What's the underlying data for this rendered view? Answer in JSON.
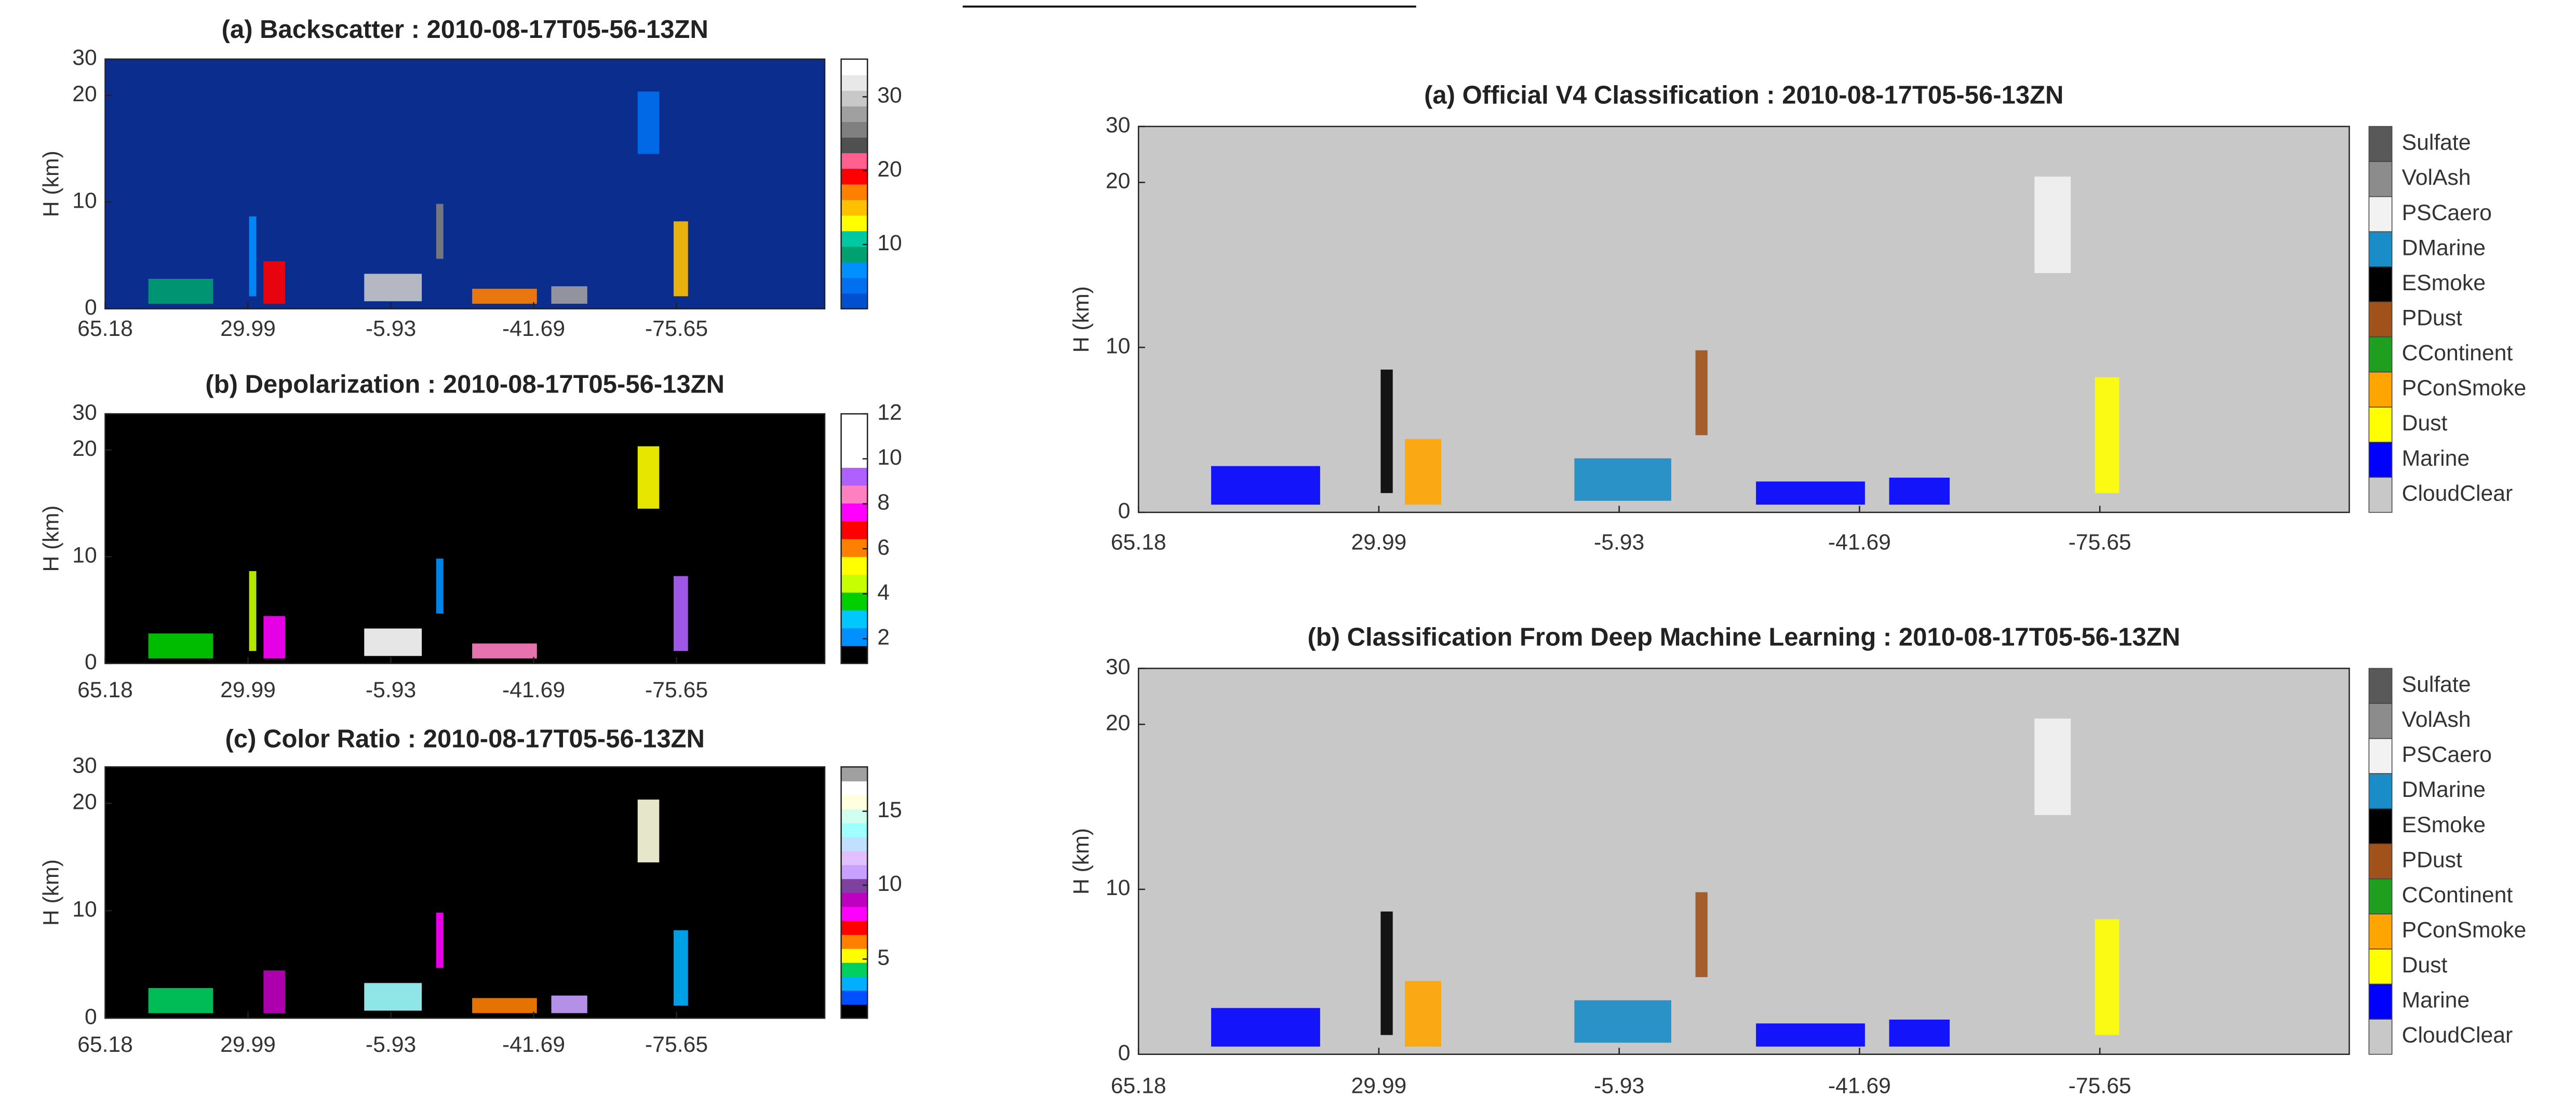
{
  "chart_data": [
    {
      "type": "heatmap",
      "title": "(a) Backscatter : 2010-08-17T05-56-13ZN",
      "ylabel": "H (km)",
      "xticks": [
        65.18,
        29.99,
        -5.93,
        -41.69,
        -75.65
      ],
      "ylim": [
        0,
        30
      ],
      "yticks": [
        0,
        10,
        20,
        30
      ],
      "background": "#0b2d8e",
      "colorbar": {
        "clim": [
          1.3,
          35.1
        ],
        "ticks": [
          10,
          20,
          30
        ],
        "colors": [
          "#0050d0",
          "#0070f0",
          "#0090ff",
          "#00a070",
          "#00c8a0",
          "#ffff00",
          "#ffc000",
          "#ff8000",
          "#ff0000",
          "#ff6090",
          "#505050",
          "#808080",
          "#a0a0a0",
          "#c8c8c8",
          "#e8e8e8",
          "#ffffff"
        ]
      }
    },
    {
      "type": "heatmap",
      "title": "(b) Depolarization : 2010-08-17T05-56-13ZN",
      "ylabel": "H (km)",
      "xticks": [
        65.18,
        29.99,
        -5.93,
        -41.69,
        -75.65
      ],
      "ylim": [
        0,
        30
      ],
      "yticks": [
        0,
        10,
        20,
        30
      ],
      "background": "#000000",
      "colorbar": {
        "clim": [
          0.9,
          12
        ],
        "ticks": [
          2,
          4,
          6,
          8,
          10,
          12
        ],
        "colors": [
          "#000000",
          "#0090ff",
          "#00c8ff",
          "#00d000",
          "#c8ff00",
          "#ffff00",
          "#ff8000",
          "#ff0000",
          "#ff00ff",
          "#ff80c0",
          "#b060ff",
          "#ffffff",
          "#ffffff",
          "#ffffff"
        ]
      }
    },
    {
      "type": "heatmap",
      "title": "(c) Color Ratio : 2010-08-17T05-56-13ZN",
      "ylabel": "H (km)",
      "xticks": [
        65.18,
        29.99,
        -5.93,
        -41.69,
        -75.65
      ],
      "ylim": [
        0,
        30
      ],
      "yticks": [
        0,
        10,
        20,
        30
      ],
      "background": "#000000",
      "colorbar": {
        "clim": [
          1,
          18
        ],
        "ticks": [
          5,
          10,
          15
        ],
        "colors": [
          "#000000",
          "#0050ff",
          "#00b0ff",
          "#00d060",
          "#ffff00",
          "#ff8000",
          "#ff0000",
          "#ff00ff",
          "#c000c0",
          "#8040a0",
          "#c8a0ff",
          "#e0c0ff",
          "#c0e0ff",
          "#a0ffff",
          "#d0fff0",
          "#ffffe0",
          "#ffffff",
          "#a0a0a0"
        ]
      }
    },
    {
      "type": "classification",
      "title": "(a) Official V4 Classification : 2010-08-17T05-56-13ZN",
      "ylabel": "H (km)",
      "xticks": [
        65.18,
        29.99,
        -5.93,
        -41.69,
        -75.65
      ],
      "ylim": [
        0,
        30
      ],
      "yticks": [
        0,
        10,
        20,
        30
      ],
      "background": "#c8c8c8",
      "classes": [
        {
          "name": "Sulfate",
          "color": "#595959"
        },
        {
          "name": "VolAsh",
          "color": "#8c8c8c"
        },
        {
          "name": "PSCaero",
          "color": "#f2f2f2"
        },
        {
          "name": "DMarine",
          "color": "#1a8cc8"
        },
        {
          "name": "ESmoke",
          "color": "#000000"
        },
        {
          "name": "PDust",
          "color": "#a0521a"
        },
        {
          "name": "CContinent",
          "color": "#1f9e1f"
        },
        {
          "name": "PConSmoke",
          "color": "#ffa500"
        },
        {
          "name": "Dust",
          "color": "#ffff00"
        },
        {
          "name": "Marine",
          "color": "#0000ff"
        },
        {
          "name": "CloudClear",
          "color": "#c8c8c8"
        }
      ]
    },
    {
      "type": "classification",
      "title": "(b) Classification From Deep Machine Learning : 2010-08-17T05-56-13ZN",
      "ylabel": "H (km)",
      "xticks": [
        65.18,
        29.99,
        -5.93,
        -41.69,
        -75.65
      ],
      "ylim": [
        0,
        30
      ],
      "yticks": [
        0,
        10,
        20,
        30
      ],
      "background": "#c8c8c8",
      "classes": [
        {
          "name": "Sulfate",
          "color": "#595959"
        },
        {
          "name": "VolAsh",
          "color": "#8c8c8c"
        },
        {
          "name": "PSCaero",
          "color": "#f2f2f2"
        },
        {
          "name": "DMarine",
          "color": "#1a8cc8"
        },
        {
          "name": "ESmoke",
          "color": "#000000"
        },
        {
          "name": "PDust",
          "color": "#a0521a"
        },
        {
          "name": "CContinent",
          "color": "#1f9e1f"
        },
        {
          "name": "PConSmoke",
          "color": "#ffa500"
        },
        {
          "name": "Dust",
          "color": "#ffff00"
        },
        {
          "name": "Marine",
          "color": "#0000ff"
        },
        {
          "name": "CloudClear",
          "color": "#c8c8c8"
        }
      ]
    }
  ]
}
